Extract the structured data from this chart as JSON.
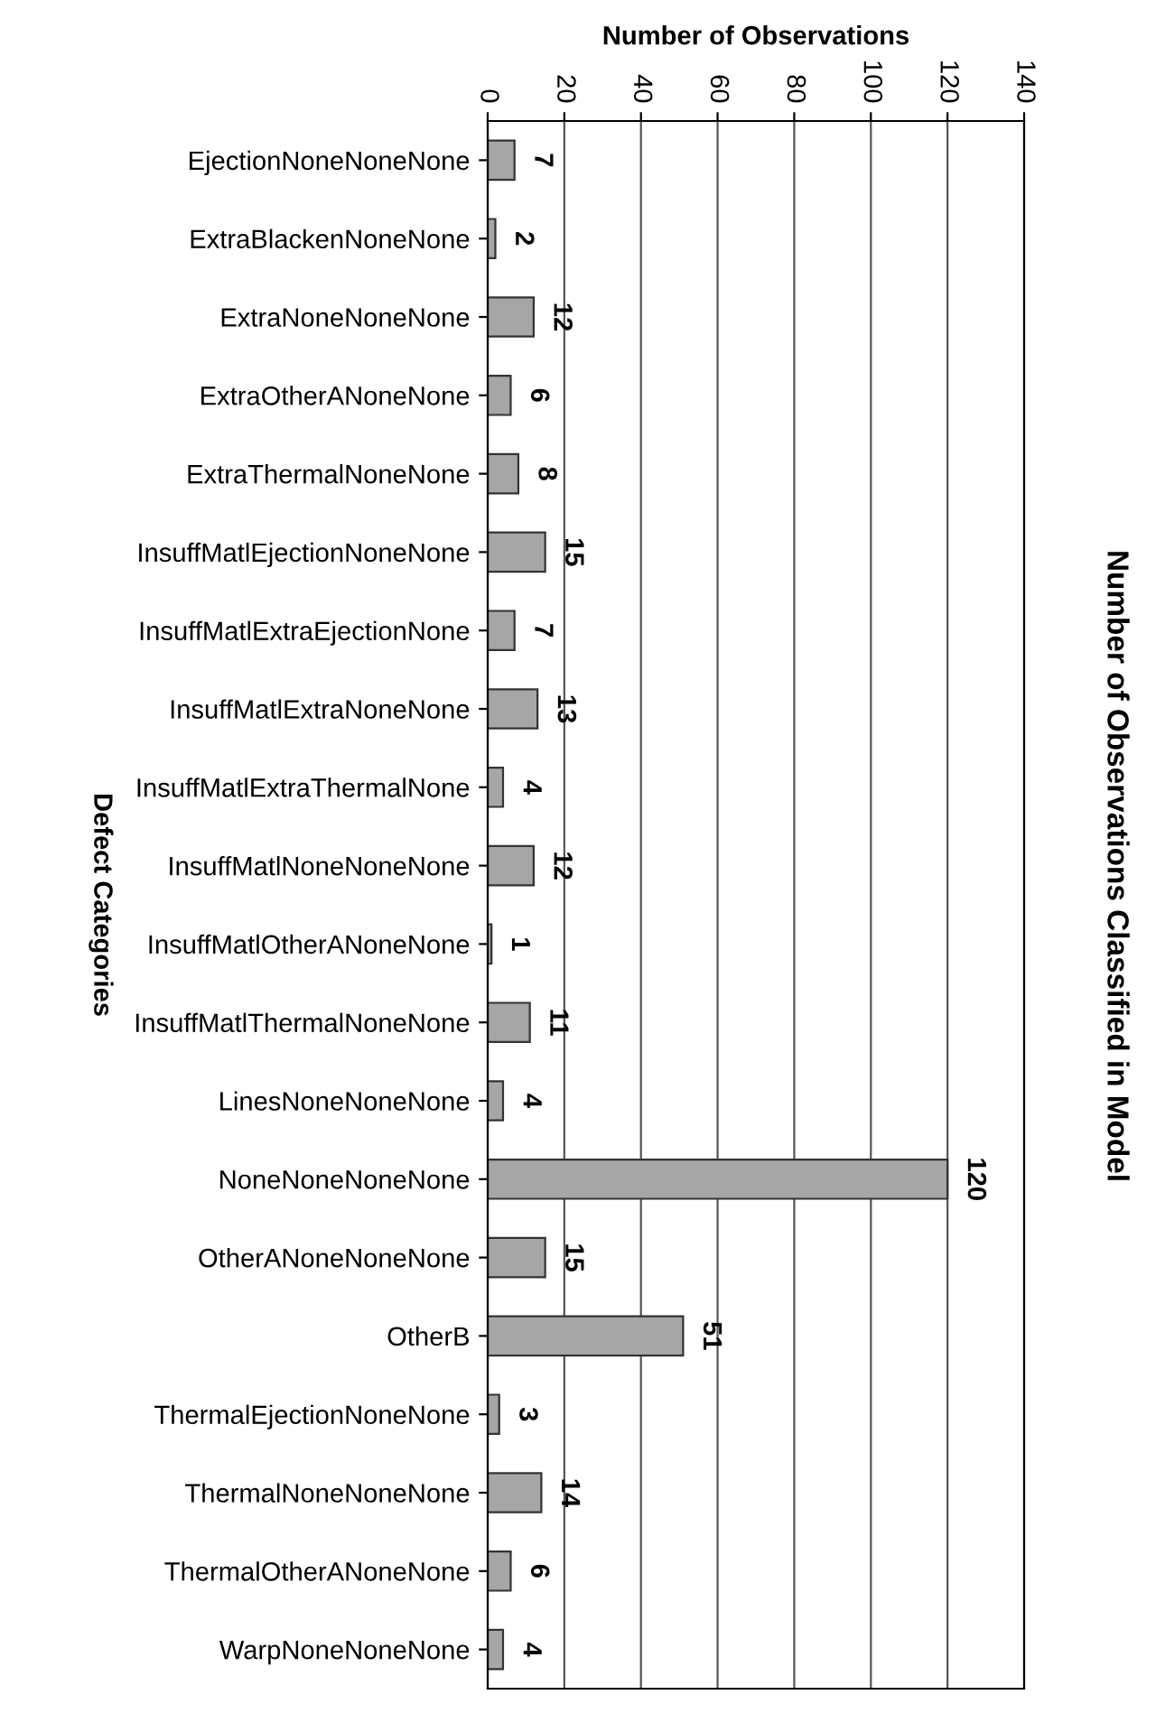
{
  "chart_data": {
    "type": "bar",
    "orientation": "horizontal",
    "title": "Number of Observations Classified in Model",
    "xlabel": "Number of Observations",
    "ylabel": "Defect Categories",
    "categories": [
      "EjectionNoneNoneNone",
      "ExtraBlackenNoneNone",
      "ExtraNoneNoneNone",
      "ExtraOtherANoneNone",
      "ExtraThermalNoneNone",
      "InsuffMatlEjectionNoneNone",
      "InsuffMatlExtraEjectionNone",
      "InsuffMatlExtraNoneNone",
      "InsuffMatlExtraThermalNone",
      "InsuffMatlNoneNoneNone",
      "InsuffMatlOtherANoneNone",
      "InsuffMatlThermalNoneNone",
      "LinesNoneNoneNone",
      "NoneNoneNoneNone",
      "OtherANoneNoneNone",
      "OtherB",
      "ThermalEjectionNoneNone",
      "ThermalNoneNoneNone",
      "ThermalOtherANoneNone",
      "WarpNoneNoneNone"
    ],
    "values": [
      7,
      2,
      12,
      6,
      8,
      15,
      7,
      13,
      4,
      12,
      1,
      11,
      4,
      120,
      15,
      51,
      3,
      14,
      6,
      4
    ],
    "color": "#a6a6a6",
    "data_labels": true,
    "xlim": [
      0,
      140
    ],
    "xticks": [
      0,
      20,
      40,
      60,
      80,
      100,
      120,
      140
    ],
    "grid": "x"
  }
}
